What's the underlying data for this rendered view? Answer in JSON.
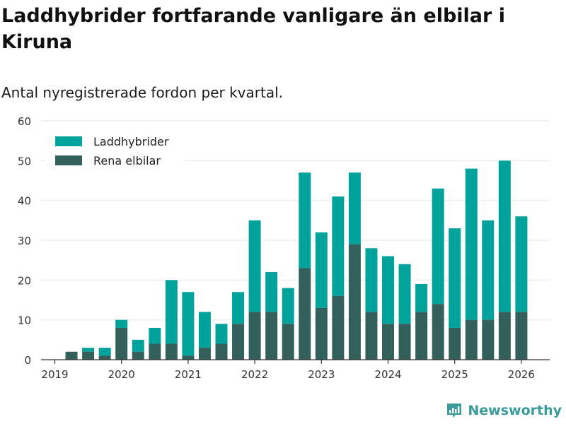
{
  "title": "Laddhybrider fortfarande vanligare än elbilar i Kiruna",
  "subtitle": "Antal nyregistrerade fordon per kvartal.",
  "brand": "Newsworthy",
  "colors": {
    "hybrid": "#00a39c",
    "electric": "#34605b",
    "grid": "#e6e6e6",
    "axis": "#333333",
    "text": "#333333"
  },
  "chart_data": {
    "type": "bar",
    "stacked": true,
    "title": "Laddhybrider fortfarande vanligare än elbilar i Kiruna",
    "subtitle": "Antal nyregistrerade fordon per kvartal.",
    "xlabel": "",
    "ylabel": "",
    "ylim": [
      0,
      60
    ],
    "yticks": [
      0,
      10,
      20,
      30,
      40,
      50,
      60
    ],
    "xticks": [
      "2019",
      "2020",
      "2021",
      "2022",
      "2023",
      "2024",
      "2025",
      "2026"
    ],
    "grid": true,
    "legend_position": "top-left",
    "categories": [
      "2019 Q2",
      "2019 Q3",
      "2019 Q4",
      "2020 Q1",
      "2020 Q2",
      "2020 Q3",
      "2020 Q4",
      "2021 Q1",
      "2021 Q2",
      "2021 Q3",
      "2021 Q4",
      "2022 Q1",
      "2022 Q2",
      "2022 Q3",
      "2022 Q4",
      "2023 Q1",
      "2023 Q2",
      "2023 Q3",
      "2023 Q4",
      "2024 Q1",
      "2024 Q2",
      "2024 Q3",
      "2024 Q4",
      "2025 Q1",
      "2025 Q2",
      "2025 Q3",
      "2025 Q4",
      "2026 Q1"
    ],
    "series": [
      {
        "name": "Rena elbilar",
        "color": "#34605b",
        "values": [
          2,
          2,
          1,
          8,
          2,
          4,
          4,
          1,
          3,
          4,
          9,
          12,
          12,
          9,
          23,
          13,
          16,
          29,
          12,
          9,
          9,
          12,
          14,
          8,
          10,
          10,
          12,
          12
        ]
      },
      {
        "name": "Laddhybrider",
        "color": "#00a39c",
        "values": [
          0,
          1,
          2,
          2,
          3,
          4,
          16,
          16,
          9,
          5,
          8,
          23,
          10,
          9,
          24,
          19,
          25,
          18,
          16,
          17,
          15,
          7,
          29,
          25,
          38,
          25,
          38,
          24
        ]
      }
    ],
    "legend": [
      "Laddhybrider",
      "Rena elbilar"
    ]
  }
}
